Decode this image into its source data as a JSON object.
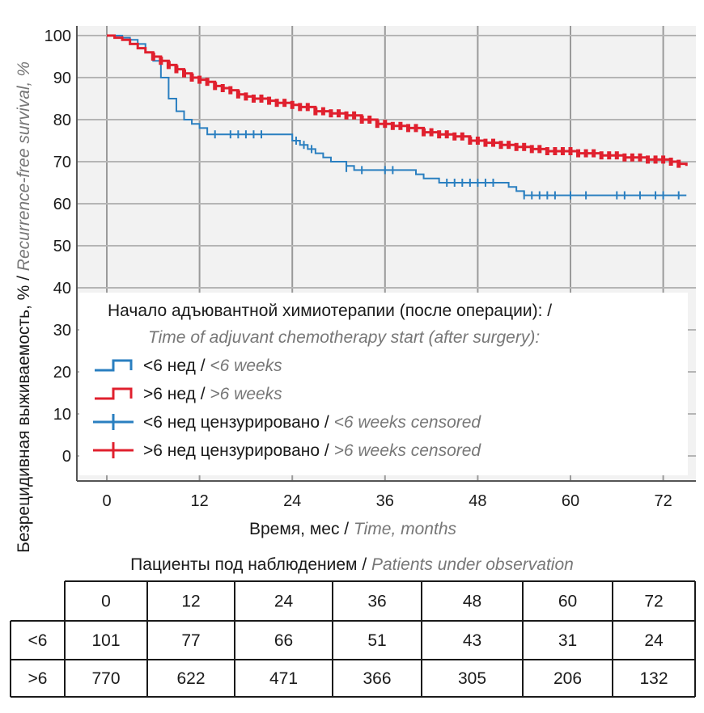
{
  "chart_data": {
    "type": "line",
    "ylabel_ru": "Безрецидивная выживаемость, %",
    "ylabel_en": "Recurrence-free survival, %",
    "xlabel_ru": "Время, мес",
    "xlabel_en": "Time, months",
    "xlim": [
      0,
      75
    ],
    "ylim": [
      0,
      100
    ],
    "x_ticks": [
      0,
      12,
      24,
      36,
      48,
      60,
      72
    ],
    "y_ticks": [
      100,
      90,
      80,
      70,
      60,
      50,
      40,
      30,
      20,
      10,
      0
    ],
    "grid": true,
    "legend": {
      "title_ru": "Начало адъювантной химиотерапии (после операции):",
      "title_en": "Time of adjuvant chemotherapy start (after surgery):",
      "entries": [
        {
          "label_ru": "<6 нед",
          "label_en": "<6 weeks",
          "color": "#2a7fc0",
          "kind": "step"
        },
        {
          "label_ru": ">6 нед",
          "label_en": ">6 weeks",
          "color": "#e0202e",
          "kind": "step"
        },
        {
          "label_ru": "<6 нед цензурировано",
          "label_en": "<6 weeks censored",
          "color": "#2a7fc0",
          "kind": "censor"
        },
        {
          "label_ru": ">6 нед цензурировано",
          "label_en": ">6 weeks censored",
          "color": "#e0202e",
          "kind": "censor"
        }
      ]
    },
    "series": [
      {
        "color": "#2a7fc0",
        "steps": [
          [
            0,
            100
          ],
          [
            1.5,
            100
          ],
          [
            2,
            99.5
          ],
          [
            3,
            99
          ],
          [
            4,
            98
          ],
          [
            5,
            96
          ],
          [
            6,
            94
          ],
          [
            7,
            90
          ],
          [
            8,
            85
          ],
          [
            9,
            82
          ],
          [
            10,
            80
          ],
          [
            11,
            79
          ],
          [
            12,
            78
          ],
          [
            13,
            76.5
          ],
          [
            22,
            76.5
          ],
          [
            24,
            75
          ],
          [
            25,
            74
          ],
          [
            26,
            73
          ],
          [
            27,
            72
          ],
          [
            28,
            71
          ],
          [
            29,
            70
          ],
          [
            31,
            69
          ],
          [
            32,
            68
          ],
          [
            39,
            68
          ],
          [
            40,
            67
          ],
          [
            41,
            66
          ],
          [
            43,
            65
          ],
          [
            51,
            65
          ],
          [
            52,
            64
          ],
          [
            53,
            63
          ],
          [
            54,
            62
          ],
          [
            75,
            62
          ]
        ],
        "censored": [
          [
            14,
            76.5
          ],
          [
            16,
            76.5
          ],
          [
            17,
            76.5
          ],
          [
            18,
            76.5
          ],
          [
            19,
            76.5
          ],
          [
            20,
            76.5
          ],
          [
            24.5,
            75
          ],
          [
            25.5,
            74
          ],
          [
            26.5,
            73
          ],
          [
            31,
            68.5
          ],
          [
            33,
            68
          ],
          [
            36,
            68
          ],
          [
            37,
            68
          ],
          [
            44,
            65
          ],
          [
            45,
            65
          ],
          [
            46,
            65
          ],
          [
            47,
            65
          ],
          [
            48,
            65
          ],
          [
            49,
            65
          ],
          [
            50,
            65
          ],
          [
            54,
            62
          ],
          [
            55,
            62
          ],
          [
            56,
            62
          ],
          [
            57,
            62
          ],
          [
            58,
            62
          ],
          [
            60,
            62
          ],
          [
            62,
            62
          ],
          [
            66,
            62
          ],
          [
            67,
            62
          ],
          [
            69,
            62
          ],
          [
            71,
            62
          ],
          [
            72,
            62
          ],
          [
            74,
            62
          ]
        ]
      },
      {
        "color": "#e0202e",
        "steps": [
          [
            0,
            100
          ],
          [
            1,
            99.5
          ],
          [
            2,
            99
          ],
          [
            3,
            98
          ],
          [
            4,
            97
          ],
          [
            5,
            96
          ],
          [
            6,
            95
          ],
          [
            7,
            94
          ],
          [
            8,
            93
          ],
          [
            9,
            92
          ],
          [
            10,
            91
          ],
          [
            11,
            90
          ],
          [
            12,
            89.5
          ],
          [
            13,
            89
          ],
          [
            14,
            88
          ],
          [
            15,
            87.5
          ],
          [
            16,
            87
          ],
          [
            17,
            86
          ],
          [
            18,
            85.5
          ],
          [
            19,
            85
          ],
          [
            21,
            84.5
          ],
          [
            22,
            84
          ],
          [
            24,
            83.5
          ],
          [
            25,
            83
          ],
          [
            27,
            82
          ],
          [
            29,
            81.5
          ],
          [
            31,
            81
          ],
          [
            33,
            80
          ],
          [
            35,
            79
          ],
          [
            37,
            78.5
          ],
          [
            39,
            78
          ],
          [
            41,
            77
          ],
          [
            43,
            76.5
          ],
          [
            45,
            76
          ],
          [
            47,
            75
          ],
          [
            49,
            74.5
          ],
          [
            51,
            74
          ],
          [
            53,
            73.5
          ],
          [
            55,
            73
          ],
          [
            57,
            72.5
          ],
          [
            61,
            72
          ],
          [
            64,
            71.5
          ],
          [
            67,
            71
          ],
          [
            70,
            70.5
          ],
          [
            73,
            70
          ],
          [
            74,
            69.5
          ],
          [
            75,
            69
          ]
        ],
        "censored": [
          [
            6,
            95
          ],
          [
            7,
            94
          ],
          [
            8,
            93
          ],
          [
            9,
            92
          ],
          [
            10,
            91
          ],
          [
            11,
            90
          ],
          [
            12,
            89.5
          ],
          [
            13,
            89
          ],
          [
            14,
            88
          ],
          [
            15,
            87.5
          ],
          [
            16,
            87
          ],
          [
            17,
            86
          ],
          [
            18,
            85.5
          ],
          [
            19,
            85
          ],
          [
            20,
            85
          ],
          [
            21,
            84.5
          ],
          [
            22,
            84
          ],
          [
            23,
            84
          ],
          [
            24,
            83.5
          ],
          [
            25,
            83
          ],
          [
            26,
            83
          ],
          [
            27,
            82
          ],
          [
            28,
            82
          ],
          [
            29,
            81.5
          ],
          [
            30,
            81.5
          ],
          [
            31,
            81
          ],
          [
            32,
            81
          ],
          [
            33,
            80
          ],
          [
            34,
            80
          ],
          [
            35,
            79
          ],
          [
            36,
            79
          ],
          [
            37,
            78.5
          ],
          [
            38,
            78.5
          ],
          [
            39,
            78
          ],
          [
            40,
            78
          ],
          [
            41,
            77
          ],
          [
            42,
            77
          ],
          [
            43,
            76.5
          ],
          [
            44,
            76.5
          ],
          [
            45,
            76
          ],
          [
            46,
            76
          ],
          [
            47,
            75
          ],
          [
            48,
            75
          ],
          [
            49,
            74.5
          ],
          [
            50,
            74.5
          ],
          [
            51,
            74
          ],
          [
            52,
            74
          ],
          [
            53,
            73.5
          ],
          [
            54,
            73.5
          ],
          [
            55,
            73
          ],
          [
            56,
            73
          ],
          [
            57,
            72.5
          ],
          [
            58,
            72.5
          ],
          [
            59,
            72.5
          ],
          [
            60,
            72.5
          ],
          [
            61,
            72
          ],
          [
            62,
            72
          ],
          [
            63,
            72
          ],
          [
            64,
            71.5
          ],
          [
            65,
            71.5
          ],
          [
            66,
            71.5
          ],
          [
            67,
            71
          ],
          [
            68,
            71
          ],
          [
            69,
            71
          ],
          [
            70,
            70.5
          ],
          [
            71,
            70.5
          ],
          [
            72,
            70.5
          ],
          [
            73,
            70
          ],
          [
            74,
            69.5
          ]
        ]
      }
    ]
  },
  "table": {
    "title_ru": "Пациенты под наблюдением",
    "title_en": "Patients under observation",
    "header": [
      "0",
      "12",
      "24",
      "36",
      "48",
      "60",
      "72"
    ],
    "rows": [
      {
        "label": "<6",
        "values": [
          "101",
          "77",
          "66",
          "51",
          "43",
          "31",
          "24"
        ]
      },
      {
        "label": ">6",
        "values": [
          "770",
          "622",
          "471",
          "366",
          "305",
          "206",
          "132"
        ]
      }
    ]
  }
}
